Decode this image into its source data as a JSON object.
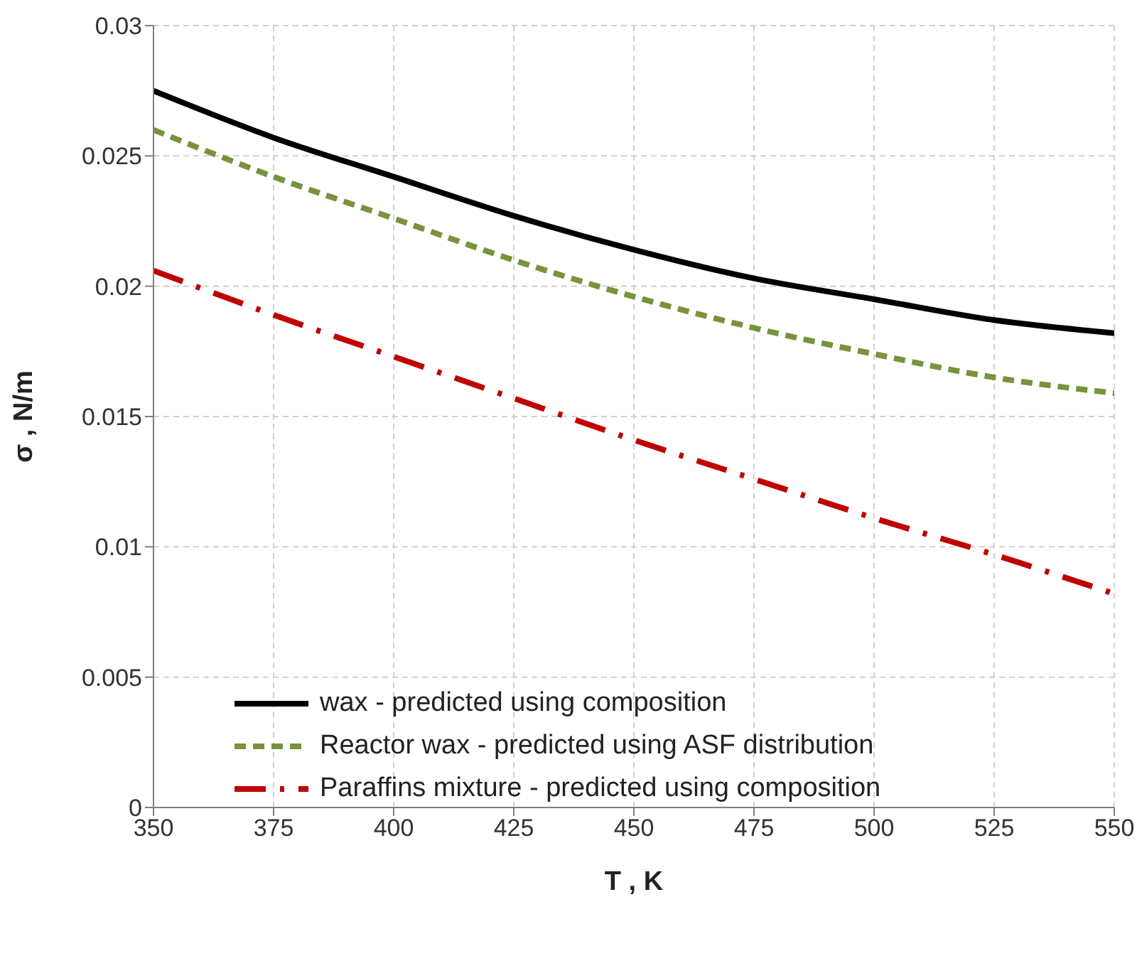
{
  "chart_data": {
    "type": "line",
    "xlabel": "T , K",
    "ylabel": "σ , N/m",
    "x": [
      350,
      375,
      400,
      425,
      450,
      475,
      500,
      525,
      550
    ],
    "series": [
      {
        "name": "wax - predicted using composition",
        "color": "#000000",
        "line_style": "solid",
        "values": [
          0.0275,
          0.0257,
          0.0242,
          0.0227,
          0.0214,
          0.0203,
          0.0195,
          0.0187,
          0.0182
        ]
      },
      {
        "name": "Reactor wax - predicted using ASF distribution",
        "color": "#77933c",
        "line_style": "dashed",
        "values": [
          0.026,
          0.0242,
          0.0226,
          0.021,
          0.0196,
          0.0184,
          0.0174,
          0.0165,
          0.0159
        ]
      },
      {
        "name": "Paraffins mixture - predicted using composition",
        "color": "#c00000",
        "line_style": "dashdot",
        "values": [
          0.0206,
          0.0189,
          0.0173,
          0.0157,
          0.0141,
          0.0126,
          0.0111,
          0.0097,
          0.0082
        ]
      }
    ],
    "xlim": [
      350,
      550
    ],
    "xticks": [
      350,
      375,
      400,
      425,
      450,
      475,
      500,
      525,
      550
    ],
    "ylim": [
      0,
      0.03
    ],
    "yticks": [
      0,
      0.005,
      0.01,
      0.015,
      0.02,
      0.025,
      0.03
    ],
    "grid": true,
    "legend": "bottom left",
    "marker": "none"
  }
}
